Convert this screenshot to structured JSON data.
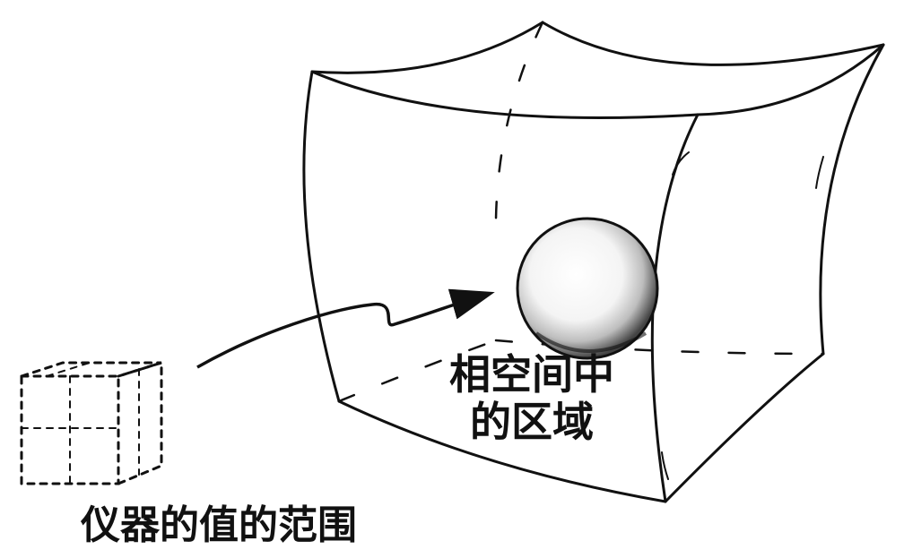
{
  "labels": {
    "phase_space_region_line1": "相空间中",
    "phase_space_region_line2": "的区域",
    "instrument_value_range": "仪器的值的范围"
  },
  "colors": {
    "ink": "#111111",
    "background": "#ffffff"
  }
}
